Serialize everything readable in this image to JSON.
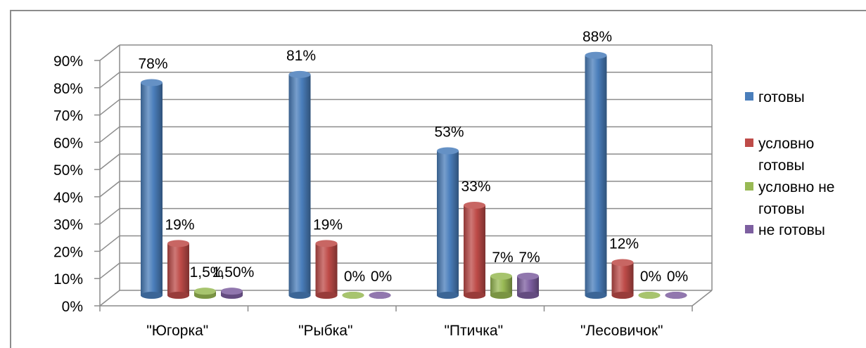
{
  "chart_data": {
    "type": "bar",
    "title": "",
    "xlabel": "",
    "ylabel": "",
    "ylim": [
      0,
      90
    ],
    "y_ticks": [
      "0%",
      "10%",
      "20%",
      "30%",
      "40%",
      "50%",
      "60%",
      "70%",
      "80%",
      "90%"
    ],
    "grid": true,
    "legend_position": "right",
    "categories": [
      "\"Югорка\"",
      "\"Рыбка\"",
      "\"Птичка\"",
      "\"Лесовичок\""
    ],
    "series": [
      {
        "name": "готовы",
        "values": [
          78,
          81,
          53,
          88
        ],
        "labels": [
          "78%",
          "81%",
          "53%",
          "88%"
        ],
        "color": "#4a7ebb"
      },
      {
        "name": "условно готовы",
        "values": [
          19,
          19,
          33,
          12
        ],
        "labels": [
          "19%",
          "19%",
          "33%",
          "12%"
        ],
        "color": "#be4b48"
      },
      {
        "name": "условно не готовы",
        "values": [
          1.5,
          0,
          7,
          0
        ],
        "labels": [
          "1,5%",
          "0%",
          "7%",
          "0%"
        ],
        "color": "#98b954"
      },
      {
        "name": "не готовы",
        "values": [
          1.5,
          0,
          7,
          0
        ],
        "labels": [
          "1,50%",
          "0%",
          "7%",
          "0%"
        ],
        "color": "#7d5fa0"
      }
    ],
    "legend": [
      {
        "lines": [
          "готовы"
        ]
      },
      {
        "lines": [
          "условно",
          "готовы"
        ]
      },
      {
        "lines": [
          "условно не",
          "готовы"
        ]
      },
      {
        "lines": [
          "не готовы"
        ]
      }
    ]
  }
}
